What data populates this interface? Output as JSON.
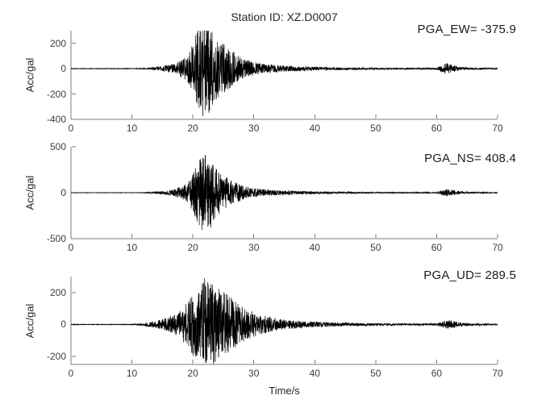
{
  "figure": {
    "background_color": "#ffffff",
    "waveform_color": "#000000",
    "axis_color": "#7b7b7b",
    "text_color": "#262626"
  },
  "chart_data": {
    "type": "line",
    "title": "Station ID: XZ.D0007",
    "xlabel": "Time/s",
    "xlim": [
      0,
      70
    ],
    "xticks": [
      0,
      10,
      20,
      30,
      40,
      50,
      60,
      70
    ],
    "x_units": "s",
    "y_units": "gal",
    "legend": "none",
    "grid": false,
    "description": "Three-component strong-motion accelerograms: quiet to ~12 s, main shock burst ~13-35 s peaking near 22 s, decaying coda, small aftershock near 61-63 s.",
    "subplots": [
      {
        "component": "EW",
        "ylabel": "Acc/gal",
        "pga_label": "PGA_EW",
        "pga_value": -375.9,
        "pga_text": "PGA_EW= -375.9",
        "ylim": [
          -400,
          300
        ],
        "yticks": [
          200,
          0,
          -200,
          -400
        ],
        "synthesis": {
          "seed": 20240101,
          "samples_per_second": 40,
          "envelope": [
            [
              0,
              0.005
            ],
            [
              11,
              0.006
            ],
            [
              13,
              0.02
            ],
            [
              15,
              0.05
            ],
            [
              17,
              0.1
            ],
            [
              19,
              0.25
            ],
            [
              20,
              0.5
            ],
            [
              20.8,
              0.8
            ],
            [
              21.6,
              1
            ],
            [
              22.6,
              0.92
            ],
            [
              23.5,
              0.68
            ],
            [
              25,
              0.5
            ],
            [
              26.5,
              0.36
            ],
            [
              28,
              0.22
            ],
            [
              30,
              0.13
            ],
            [
              33,
              0.085
            ],
            [
              36,
              0.055
            ],
            [
              40,
              0.038
            ],
            [
              45,
              0.026
            ],
            [
              50,
              0.02
            ],
            [
              55,
              0.016
            ],
            [
              60,
              0.018
            ],
            [
              60.8,
              0.07
            ],
            [
              61.5,
              0.12
            ],
            [
              62.5,
              0.08
            ],
            [
              63.5,
              0.04
            ],
            [
              65,
              0.022
            ],
            [
              70,
              0.012
            ]
          ]
        }
      },
      {
        "component": "NS",
        "ylabel": "Acc/gal",
        "pga_label": "PGA_NS",
        "pga_value": 408.4,
        "pga_text": "PGA_NS= 408.4",
        "ylim": [
          -500,
          500
        ],
        "yticks": [
          500,
          0,
          -500
        ],
        "synthesis": {
          "seed": 7707,
          "samples_per_second": 40,
          "envelope": [
            [
              0,
              0.004
            ],
            [
              11,
              0.005
            ],
            [
              13,
              0.015
            ],
            [
              15,
              0.04
            ],
            [
              17,
              0.09
            ],
            [
              19,
              0.22
            ],
            [
              20,
              0.45
            ],
            [
              20.8,
              0.75
            ],
            [
              21.8,
              1
            ],
            [
              22.8,
              0.9
            ],
            [
              23.8,
              0.62
            ],
            [
              25,
              0.42
            ],
            [
              26.5,
              0.3
            ],
            [
              28,
              0.18
            ],
            [
              30,
              0.11
            ],
            [
              33,
              0.07
            ],
            [
              36,
              0.05
            ],
            [
              40,
              0.033
            ],
            [
              45,
              0.022
            ],
            [
              50,
              0.016
            ],
            [
              55,
              0.013
            ],
            [
              60,
              0.015
            ],
            [
              60.8,
              0.06
            ],
            [
              61.8,
              0.1
            ],
            [
              62.8,
              0.07
            ],
            [
              63.8,
              0.035
            ],
            [
              65,
              0.02
            ],
            [
              70,
              0.01
            ]
          ]
        }
      },
      {
        "component": "UD",
        "ylabel": "Acc/gal",
        "pga_label": "PGA_UD",
        "pga_value": 289.5,
        "pga_text": "PGA_UD= 289.5",
        "ylim": [
          -250,
          300
        ],
        "yticks": [
          200,
          0,
          -200
        ],
        "synthesis": {
          "seed": 123457,
          "samples_per_second": 40,
          "envelope": [
            [
              0,
              0.006
            ],
            [
              10,
              0.007
            ],
            [
              12,
              0.03
            ],
            [
              14,
              0.08
            ],
            [
              16,
              0.15
            ],
            [
              18,
              0.3
            ],
            [
              19.5,
              0.55
            ],
            [
              20.5,
              0.8
            ],
            [
              21.8,
              1
            ],
            [
              23,
              0.9
            ],
            [
              24.5,
              0.75
            ],
            [
              26,
              0.6
            ],
            [
              27.5,
              0.45
            ],
            [
              29,
              0.32
            ],
            [
              31,
              0.22
            ],
            [
              33,
              0.15
            ],
            [
              35,
              0.11
            ],
            [
              38,
              0.075
            ],
            [
              42,
              0.05
            ],
            [
              46,
              0.035
            ],
            [
              50,
              0.027
            ],
            [
              55,
              0.02
            ],
            [
              60,
              0.022
            ],
            [
              60.8,
              0.06
            ],
            [
              62,
              0.1
            ],
            [
              63,
              0.07
            ],
            [
              64,
              0.04
            ],
            [
              66,
              0.025
            ],
            [
              70,
              0.014
            ]
          ]
        }
      }
    ]
  }
}
